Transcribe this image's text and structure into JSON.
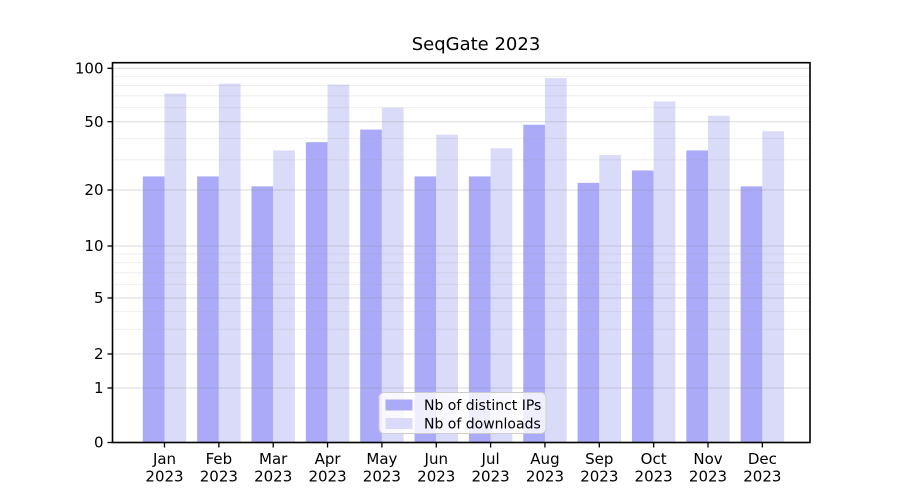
{
  "chart_data": {
    "type": "bar",
    "title": "SeqGate 2023",
    "categories": [
      "Jan",
      "Feb",
      "Mar",
      "Apr",
      "May",
      "Jun",
      "Jul",
      "Aug",
      "Sep",
      "Oct",
      "Nov",
      "Dec"
    ],
    "year_label": "2023",
    "series": [
      {
        "name": "Nb of distinct IPs",
        "color": "#aaaaf9",
        "values": [
          24,
          24,
          21,
          38,
          45,
          24,
          24,
          48,
          22,
          26,
          34,
          21
        ]
      },
      {
        "name": "Nb of downloads",
        "color": "#dadaf9",
        "values": [
          72,
          82,
          34,
          81,
          60,
          42,
          35,
          88,
          32,
          65,
          54,
          44
        ]
      }
    ],
    "y_axis": {
      "scale": "symlog",
      "ticks": [
        0,
        1,
        2,
        5,
        10,
        20,
        50,
        100
      ],
      "minor_ticks": [
        3,
        4,
        6,
        7,
        8,
        9,
        30,
        40,
        60,
        70,
        80,
        90
      ],
      "range": [
        0,
        100
      ]
    },
    "x_axis": {
      "tick_labels": [
        "Jan 2023",
        "Feb 2023",
        "Mar 2023",
        "Apr 2023",
        "May 2023",
        "Jun 2023",
        "Jul 2023",
        "Aug 2023",
        "Sep 2023",
        "Oct 2023",
        "Nov 2023",
        "Dec 2023"
      ]
    },
    "legend": {
      "position": "lower center",
      "entries": [
        "Nb of distinct IPs",
        "Nb of downloads"
      ]
    },
    "colors": {
      "axis": "#000000",
      "grid_major": "#8c8c8c",
      "grid_minor": "#a0a0a0"
    },
    "grid": "on"
  }
}
